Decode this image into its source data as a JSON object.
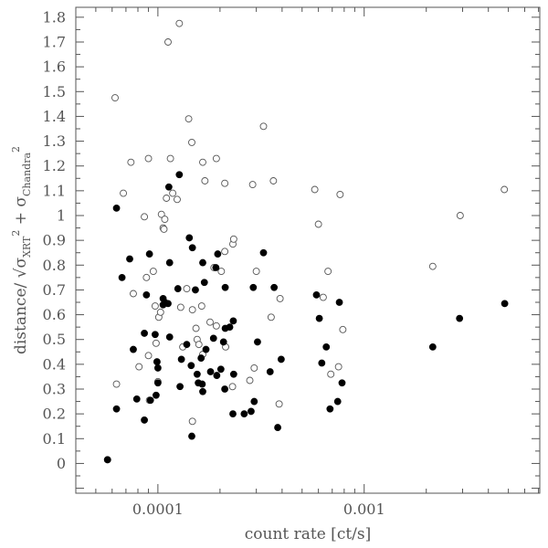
{
  "chart_data": {
    "type": "scatter",
    "title": "",
    "xlabel": "count rate [ct/s]",
    "ylabel": {
      "prefix": "distance/ √",
      "sigma": "σ",
      "sub1": "XRT",
      "plus": " + ",
      "sub2": "Chandra",
      "sup": "2"
    },
    "xscale": "log",
    "xlim": [
      4e-05,
      0.0071
    ],
    "ylim": [
      -0.12,
      1.84
    ],
    "x_tick_labels": [
      {
        "value": 0.0001,
        "label": "0.0001"
      },
      {
        "value": 0.001,
        "label": "0.001"
      }
    ],
    "y_tick_labels": [
      "0",
      "0.1",
      "0.2",
      "0.3",
      "0.4",
      "0.5",
      "0.6",
      "0.7",
      "0.8",
      "0.9",
      "1",
      "1.1",
      "1.2",
      "1.3",
      "1.4",
      "1.5",
      "1.6",
      "1.7",
      "1.8"
    ],
    "grid": false,
    "legend": "none",
    "series": [
      {
        "marker": "filled-circle",
        "color": "#000000",
        "points": [
          [
            5.7e-05,
            0.015
          ],
          [
            6.3e-05,
            1.03
          ],
          [
            6.3e-05,
            0.22
          ],
          [
            6.7e-05,
            0.75
          ],
          [
            7.3e-05,
            0.825
          ],
          [
            7.6e-05,
            0.46
          ],
          [
            7.9e-05,
            0.26
          ],
          [
            8.6e-05,
            0.175
          ],
          [
            8.6e-05,
            0.525
          ],
          [
            8.8e-05,
            0.68
          ],
          [
            9.1e-05,
            0.845
          ],
          [
            9.2e-05,
            0.255
          ],
          [
            9.7e-05,
            0.52
          ],
          [
            9.8e-05,
            0.275
          ],
          [
            9.9e-05,
            0.41
          ],
          [
            0.0001,
            0.325
          ],
          [
            0.0001,
            0.385
          ],
          [
            0.000106,
            0.665
          ],
          [
            0.000106,
            0.64
          ],
          [
            0.000108,
            0.65
          ],
          [
            0.000112,
            0.645
          ],
          [
            0.000113,
            1.115
          ],
          [
            0.000114,
            0.81
          ],
          [
            0.000114,
            0.51
          ],
          [
            0.000125,
            0.705
          ],
          [
            0.000127,
            1.165
          ],
          [
            0.000128,
            0.31
          ],
          [
            0.00013,
            0.42
          ],
          [
            0.000138,
            0.48
          ],
          [
            0.000142,
            0.91
          ],
          [
            0.000145,
            0.395
          ],
          [
            0.000146,
            0.11
          ],
          [
            0.000147,
            0.87
          ],
          [
            0.000152,
            0.7
          ],
          [
            0.000155,
            0.36
          ],
          [
            0.000157,
            0.325
          ],
          [
            0.000162,
            0.425
          ],
          [
            0.000164,
            0.32
          ],
          [
            0.000165,
            0.29
          ],
          [
            0.000165,
            0.81
          ],
          [
            0.000168,
            0.73
          ],
          [
            0.000171,
            0.46
          ],
          [
            0.00018,
            0.37
          ],
          [
            0.000186,
            0.505
          ],
          [
            0.000191,
            0.79
          ],
          [
            0.000193,
            0.355
          ],
          [
            0.000195,
            0.845
          ],
          [
            0.000202,
            0.38
          ],
          [
            0.000208,
            0.49
          ],
          [
            0.000211,
            0.3
          ],
          [
            0.000212,
            0.71
          ],
          [
            0.000212,
            0.545
          ],
          [
            0.000223,
            0.55
          ],
          [
            0.000231,
            0.2
          ],
          [
            0.000232,
            0.575
          ],
          [
            0.000233,
            0.36
          ],
          [
            0.000262,
            0.2
          ],
          [
            0.000283,
            0.21
          ],
          [
            0.00029,
            0.71
          ],
          [
            0.000293,
            0.25
          ],
          [
            0.000304,
            0.49
          ],
          [
            0.000325,
            0.85
          ],
          [
            0.00035,
            0.37
          ],
          [
            0.000366,
            0.71
          ],
          [
            0.000381,
            0.145
          ],
          [
            0.000396,
            0.42
          ],
          [
            0.000587,
            0.68
          ],
          [
            0.000606,
            0.585
          ],
          [
            0.000623,
            0.405
          ],
          [
            0.000655,
            0.47
          ],
          [
            0.000683,
            0.22
          ],
          [
            0.000744,
            0.25
          ],
          [
            0.000758,
            0.65
          ],
          [
            0.000781,
            0.325
          ],
          [
            0.00215,
            0.47
          ],
          [
            0.0029,
            0.585
          ],
          [
            0.0048,
            0.645
          ]
        ]
      },
      {
        "marker": "open-circle",
        "color": "#555555",
        "points": [
          [
            5.7e-05,
            0.015
          ],
          [
            6.2e-05,
            1.475
          ],
          [
            6.3e-05,
            0.32
          ],
          [
            6.8e-05,
            1.09
          ],
          [
            7.4e-05,
            1.215
          ],
          [
            7.6e-05,
            0.685
          ],
          [
            8.1e-05,
            0.39
          ],
          [
            8.6e-05,
            0.995
          ],
          [
            8.8e-05,
            0.75
          ],
          [
            9e-05,
            0.435
          ],
          [
            9e-05,
            1.23
          ],
          [
            9.1e-05,
            0.255
          ],
          [
            9.5e-05,
            0.775
          ],
          [
            9.7e-05,
            0.635
          ],
          [
            9.8e-05,
            0.485
          ],
          [
            9.9e-05,
            0.41
          ],
          [
            0.0001,
            0.33
          ],
          [
            0.000101,
            0.59
          ],
          [
            0.000103,
            0.61
          ],
          [
            0.000104,
            1.005
          ],
          [
            0.000106,
            0.95
          ],
          [
            0.000107,
            0.945
          ],
          [
            0.000108,
            0.985
          ],
          [
            0.00011,
            1.07
          ],
          [
            0.000112,
            1.7
          ],
          [
            0.000115,
            1.23
          ],
          [
            0.000118,
            1.09
          ],
          [
            0.000124,
            1.065
          ],
          [
            0.000127,
            1.775
          ],
          [
            0.000129,
            0.63
          ],
          [
            0.000132,
            0.47
          ],
          [
            0.000138,
            0.705
          ],
          [
            0.000141,
            1.39
          ],
          [
            0.000146,
            1.295
          ],
          [
            0.000147,
            0.62
          ],
          [
            0.000147,
            0.17
          ],
          [
            0.000153,
            0.545
          ],
          [
            0.000155,
            0.5
          ],
          [
            0.000158,
            0.48
          ],
          [
            0.000163,
            0.635
          ],
          [
            0.000165,
            0.44
          ],
          [
            0.000165,
            1.215
          ],
          [
            0.000169,
            1.14
          ],
          [
            0.000179,
            0.57
          ],
          [
            0.000187,
            0.79
          ],
          [
            0.000192,
            0.555
          ],
          [
            0.000192,
            1.23
          ],
          [
            0.000203,
            0.775
          ],
          [
            0.000211,
            1.13
          ],
          [
            0.000211,
            0.855
          ],
          [
            0.000213,
            0.47
          ],
          [
            0.00023,
            0.31
          ],
          [
            0.000231,
            0.885
          ],
          [
            0.000233,
            0.905
          ],
          [
            0.000279,
            0.335
          ],
          [
            0.000288,
            1.125
          ],
          [
            0.000293,
            0.385
          ],
          [
            0.0003,
            0.775
          ],
          [
            0.000325,
            1.36
          ],
          [
            0.000354,
            0.59
          ],
          [
            0.000363,
            1.14
          ],
          [
            0.000387,
            0.24
          ],
          [
            0.000391,
            0.665
          ],
          [
            0.000576,
            1.105
          ],
          [
            0.0006,
            0.965
          ],
          [
            0.000633,
            0.67
          ],
          [
            0.000668,
            0.775
          ],
          [
            0.000689,
            0.36
          ],
          [
            0.000751,
            0.39
          ],
          [
            0.000764,
            1.085
          ],
          [
            0.000788,
            0.54
          ],
          [
            0.00215,
            0.795
          ],
          [
            0.00292,
            1.0
          ],
          [
            0.00478,
            1.105
          ]
        ]
      }
    ]
  }
}
